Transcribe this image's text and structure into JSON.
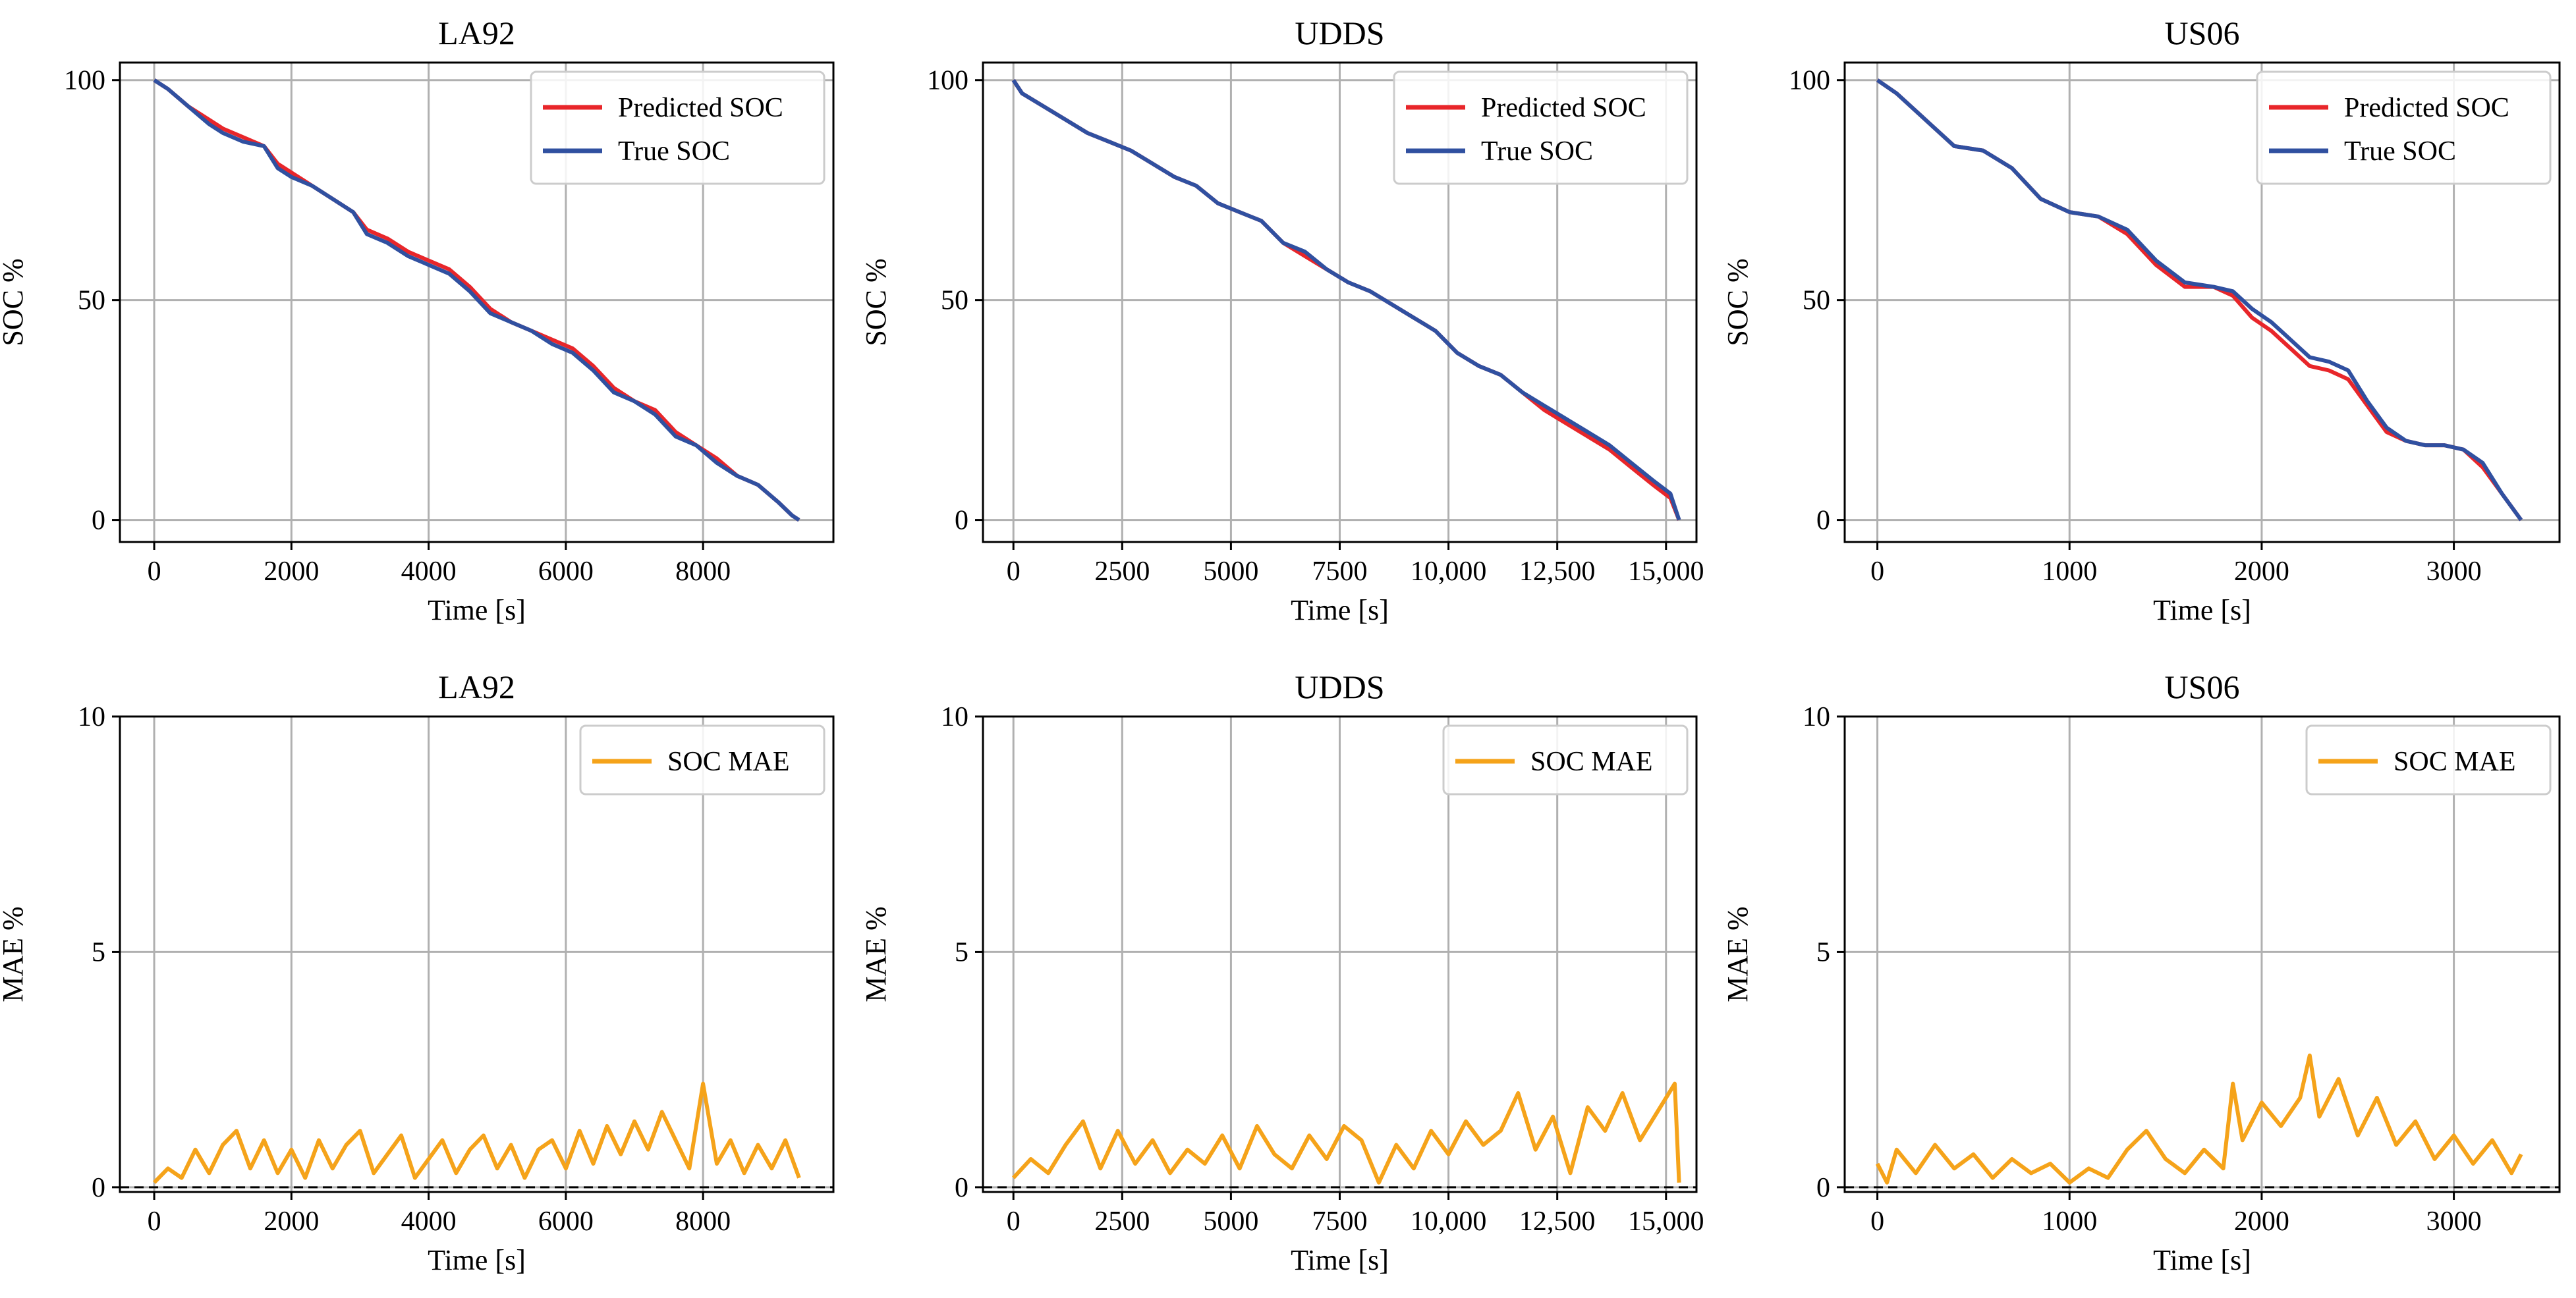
{
  "chart_data": [
    {
      "type": "line",
      "title": "LA92",
      "xlabel": "Time [s]",
      "ylabel": "SOC %",
      "xlim": [
        -500,
        9900
      ],
      "ylim": [
        -5,
        104
      ],
      "xticks": [
        0,
        2000,
        4000,
        6000,
        8000
      ],
      "xtick_labels": [
        "0",
        "2000",
        "4000",
        "6000",
        "8000"
      ],
      "yticks": [
        0,
        50,
        100
      ],
      "ytick_labels": [
        "0",
        "50",
        "100"
      ],
      "legend": "top-right",
      "series": [
        {
          "name": "Predicted SOC",
          "color": "#e8262a",
          "x": [
            0,
            200,
            500,
            800,
            1000,
            1300,
            1600,
            1800,
            2000,
            2300,
            2600,
            2900,
            3100,
            3400,
            3700,
            4000,
            4300,
            4600,
            4900,
            5200,
            5500,
            5800,
            6100,
            6400,
            6700,
            7000,
            7300,
            7600,
            7900,
            8200,
            8500,
            8800,
            9100,
            9300,
            9400
          ],
          "y": [
            100,
            98,
            94,
            91,
            89,
            87,
            85,
            81,
            79,
            76,
            73,
            70,
            66,
            64,
            61,
            59,
            57,
            53,
            48,
            45,
            43,
            41,
            39,
            35,
            30,
            27,
            25,
            20,
            17,
            14,
            10,
            8,
            4,
            1,
            0
          ]
        },
        {
          "name": "True SOC",
          "color": "#3050a0",
          "x": [
            0,
            200,
            500,
            800,
            1000,
            1300,
            1600,
            1800,
            2000,
            2300,
            2600,
            2900,
            3100,
            3400,
            3700,
            4000,
            4300,
            4600,
            4900,
            5200,
            5500,
            5800,
            6100,
            6400,
            6700,
            7000,
            7300,
            7600,
            7900,
            8200,
            8500,
            8800,
            9100,
            9300,
            9400
          ],
          "y": [
            100,
            98,
            94,
            90,
            88,
            86,
            85,
            80,
            78,
            76,
            73,
            70,
            65,
            63,
            60,
            58,
            56,
            52,
            47,
            45,
            43,
            40,
            38,
            34,
            29,
            27,
            24,
            19,
            17,
            13,
            10,
            8,
            4,
            1,
            0
          ]
        }
      ]
    },
    {
      "type": "line",
      "title": "UDDS",
      "xlabel": "Time [s]",
      "ylabel": "SOC %",
      "xlim": [
        -700,
        15700
      ],
      "ylim": [
        -5,
        104
      ],
      "xticks": [
        0,
        2500,
        5000,
        7500,
        10000,
        12500,
        15000
      ],
      "xtick_labels": [
        "0",
        "2500",
        "5000",
        "7500",
        "10,000",
        "12,500",
        "15,000"
      ],
      "yticks": [
        0,
        50,
        100
      ],
      "ytick_labels": [
        "0",
        "50",
        "100"
      ],
      "legend": "top-right",
      "series": [
        {
          "name": "Predicted SOC",
          "color": "#e8262a",
          "x": [
            0,
            200,
            700,
            1200,
            1700,
            2200,
            2700,
            3200,
            3700,
            4200,
            4700,
            5200,
            5700,
            6200,
            6700,
            7200,
            7700,
            8200,
            8700,
            9200,
            9700,
            10200,
            10700,
            11200,
            11700,
            12200,
            12700,
            13200,
            13700,
            14200,
            14700,
            15100,
            15300
          ],
          "y": [
            100,
            97,
            94,
            91,
            88,
            86,
            84,
            81,
            78,
            76,
            72,
            70,
            68,
            63,
            60,
            57,
            54,
            52,
            49,
            46,
            43,
            38,
            35,
            33,
            29,
            25,
            22,
            19,
            16,
            12,
            8,
            5,
            0
          ]
        },
        {
          "name": "True SOC",
          "color": "#3050a0",
          "x": [
            0,
            200,
            700,
            1200,
            1700,
            2200,
            2700,
            3200,
            3700,
            4200,
            4700,
            5200,
            5700,
            6200,
            6700,
            7200,
            7700,
            8200,
            8700,
            9200,
            9700,
            10200,
            10700,
            11200,
            11700,
            12200,
            12700,
            13200,
            13700,
            14200,
            14700,
            15100,
            15300
          ],
          "y": [
            100,
            97,
            94,
            91,
            88,
            86,
            84,
            81,
            78,
            76,
            72,
            70,
            68,
            63,
            61,
            57,
            54,
            52,
            49,
            46,
            43,
            38,
            35,
            33,
            29,
            26,
            23,
            20,
            17,
            13,
            9,
            6,
            0
          ]
        }
      ]
    },
    {
      "type": "line",
      "title": "US06",
      "xlabel": "Time [s]",
      "ylabel": "SOC %",
      "xlim": [
        -170,
        3550
      ],
      "ylim": [
        -5,
        104
      ],
      "xticks": [
        0,
        1000,
        2000,
        3000
      ],
      "xtick_labels": [
        "0",
        "1000",
        "2000",
        "3000"
      ],
      "yticks": [
        0,
        50,
        100
      ],
      "ytick_labels": [
        "0",
        "50",
        "100"
      ],
      "legend": "top-right",
      "series": [
        {
          "name": "Predicted SOC",
          "color": "#e8262a",
          "x": [
            0,
            100,
            250,
            400,
            550,
            700,
            850,
            1000,
            1150,
            1300,
            1450,
            1600,
            1750,
            1850,
            1950,
            2050,
            2150,
            2250,
            2350,
            2450,
            2550,
            2650,
            2750,
            2850,
            2950,
            3050,
            3150,
            3250,
            3350
          ],
          "y": [
            100,
            97,
            91,
            85,
            84,
            80,
            73,
            70,
            69,
            65,
            58,
            53,
            53,
            51,
            46,
            43,
            39,
            35,
            34,
            32,
            26,
            20,
            18,
            17,
            17,
            16,
            12,
            6,
            0
          ]
        },
        {
          "name": "True SOC",
          "color": "#3050a0",
          "x": [
            0,
            100,
            250,
            400,
            550,
            700,
            850,
            1000,
            1150,
            1300,
            1450,
            1600,
            1750,
            1850,
            1950,
            2050,
            2150,
            2250,
            2350,
            2450,
            2550,
            2650,
            2750,
            2850,
            2950,
            3050,
            3150,
            3250,
            3350
          ],
          "y": [
            100,
            97,
            91,
            85,
            84,
            80,
            73,
            70,
            69,
            66,
            59,
            54,
            53,
            52,
            48,
            45,
            41,
            37,
            36,
            34,
            27,
            21,
            18,
            17,
            17,
            16,
            13,
            6,
            0
          ]
        }
      ]
    },
    {
      "type": "line",
      "title": "LA92",
      "xlabel": "Time [s]",
      "ylabel": "MAE %",
      "xlim": [
        -500,
        9900
      ],
      "ylim": [
        -0.1,
        10
      ],
      "xticks": [
        0,
        2000,
        4000,
        6000,
        8000
      ],
      "xtick_labels": [
        "0",
        "2000",
        "4000",
        "6000",
        "8000"
      ],
      "yticks": [
        0,
        5,
        10
      ],
      "ytick_labels": [
        "0",
        "5",
        "10"
      ],
      "hline": 0,
      "legend": "top-right",
      "series": [
        {
          "name": "SOC MAE",
          "color": "#f5a31a",
          "x": [
            0,
            200,
            400,
            600,
            800,
            1000,
            1200,
            1400,
            1600,
            1800,
            2000,
            2200,
            2400,
            2600,
            2800,
            3000,
            3200,
            3400,
            3600,
            3800,
            4000,
            4200,
            4400,
            4600,
            4800,
            5000,
            5200,
            5400,
            5600,
            5800,
            6000,
            6200,
            6400,
            6600,
            6800,
            7000,
            7200,
            7400,
            7600,
            7800,
            8000,
            8200,
            8400,
            8600,
            8800,
            9000,
            9200,
            9400
          ],
          "y": [
            0.1,
            0.4,
            0.2,
            0.8,
            0.3,
            0.9,
            1.2,
            0.4,
            1.0,
            0.3,
            0.8,
            0.2,
            1.0,
            0.4,
            0.9,
            1.2,
            0.3,
            0.7,
            1.1,
            0.2,
            0.6,
            1.0,
            0.3,
            0.8,
            1.1,
            0.4,
            0.9,
            0.2,
            0.8,
            1.0,
            0.4,
            1.2,
            0.5,
            1.3,
            0.7,
            1.4,
            0.8,
            1.6,
            1.0,
            0.4,
            2.2,
            0.5,
            1.0,
            0.3,
            0.9,
            0.4,
            1.0,
            0.2
          ]
        }
      ]
    },
    {
      "type": "line",
      "title": "UDDS",
      "xlabel": "Time [s]",
      "ylabel": "MAE %",
      "xlim": [
        -700,
        15700
      ],
      "ylim": [
        -0.1,
        10
      ],
      "xticks": [
        0,
        2500,
        5000,
        7500,
        10000,
        12500,
        15000
      ],
      "xtick_labels": [
        "0",
        "2500",
        "5000",
        "7500",
        "10,000",
        "12,500",
        "15,000"
      ],
      "yticks": [
        0,
        5,
        10
      ],
      "ytick_labels": [
        "0",
        "5",
        "10"
      ],
      "hline": 0,
      "legend": "top-right",
      "series": [
        {
          "name": "SOC MAE",
          "color": "#f5a31a",
          "x": [
            0,
            400,
            800,
            1200,
            1600,
            2000,
            2400,
            2800,
            3200,
            3600,
            4000,
            4400,
            4800,
            5200,
            5600,
            6000,
            6400,
            6800,
            7200,
            7600,
            8000,
            8400,
            8800,
            9200,
            9600,
            10000,
            10400,
            10800,
            11200,
            11600,
            12000,
            12400,
            12800,
            13200,
            13600,
            14000,
            14400,
            14800,
            15200,
            15300
          ],
          "y": [
            0.2,
            0.6,
            0.3,
            0.9,
            1.4,
            0.4,
            1.2,
            0.5,
            1.0,
            0.3,
            0.8,
            0.5,
            1.1,
            0.4,
            1.3,
            0.7,
            0.4,
            1.1,
            0.6,
            1.3,
            1.0,
            0.1,
            0.9,
            0.4,
            1.2,
            0.7,
            1.4,
            0.9,
            1.2,
            2.0,
            0.8,
            1.5,
            0.3,
            1.7,
            1.2,
            2.0,
            1.0,
            1.6,
            2.2,
            0.1
          ]
        }
      ]
    },
    {
      "type": "line",
      "title": "US06",
      "xlabel": "Time [s]",
      "ylabel": "MAE %",
      "xlim": [
        -170,
        3550
      ],
      "ylim": [
        -0.1,
        10
      ],
      "xticks": [
        0,
        1000,
        2000,
        3000
      ],
      "xtick_labels": [
        "0",
        "1000",
        "2000",
        "3000"
      ],
      "yticks": [
        0,
        5,
        10
      ],
      "ytick_labels": [
        "0",
        "5",
        "10"
      ],
      "hline": 0,
      "legend": "top-right",
      "series": [
        {
          "name": "SOC MAE",
          "color": "#f5a31a",
          "x": [
            0,
            50,
            100,
            200,
            300,
            400,
            500,
            600,
            700,
            800,
            900,
            1000,
            1100,
            1200,
            1300,
            1400,
            1500,
            1600,
            1700,
            1800,
            1850,
            1900,
            2000,
            2100,
            2200,
            2250,
            2300,
            2400,
            2500,
            2600,
            2700,
            2800,
            2900,
            3000,
            3100,
            3200,
            3300,
            3350
          ],
          "y": [
            0.5,
            0.1,
            0.8,
            0.3,
            0.9,
            0.4,
            0.7,
            0.2,
            0.6,
            0.3,
            0.5,
            0.1,
            0.4,
            0.2,
            0.8,
            1.2,
            0.6,
            0.3,
            0.8,
            0.4,
            2.2,
            1.0,
            1.8,
            1.3,
            1.9,
            2.8,
            1.5,
            2.3,
            1.1,
            1.9,
            0.9,
            1.4,
            0.6,
            1.1,
            0.5,
            1.0,
            0.3,
            0.7
          ]
        }
      ]
    }
  ]
}
